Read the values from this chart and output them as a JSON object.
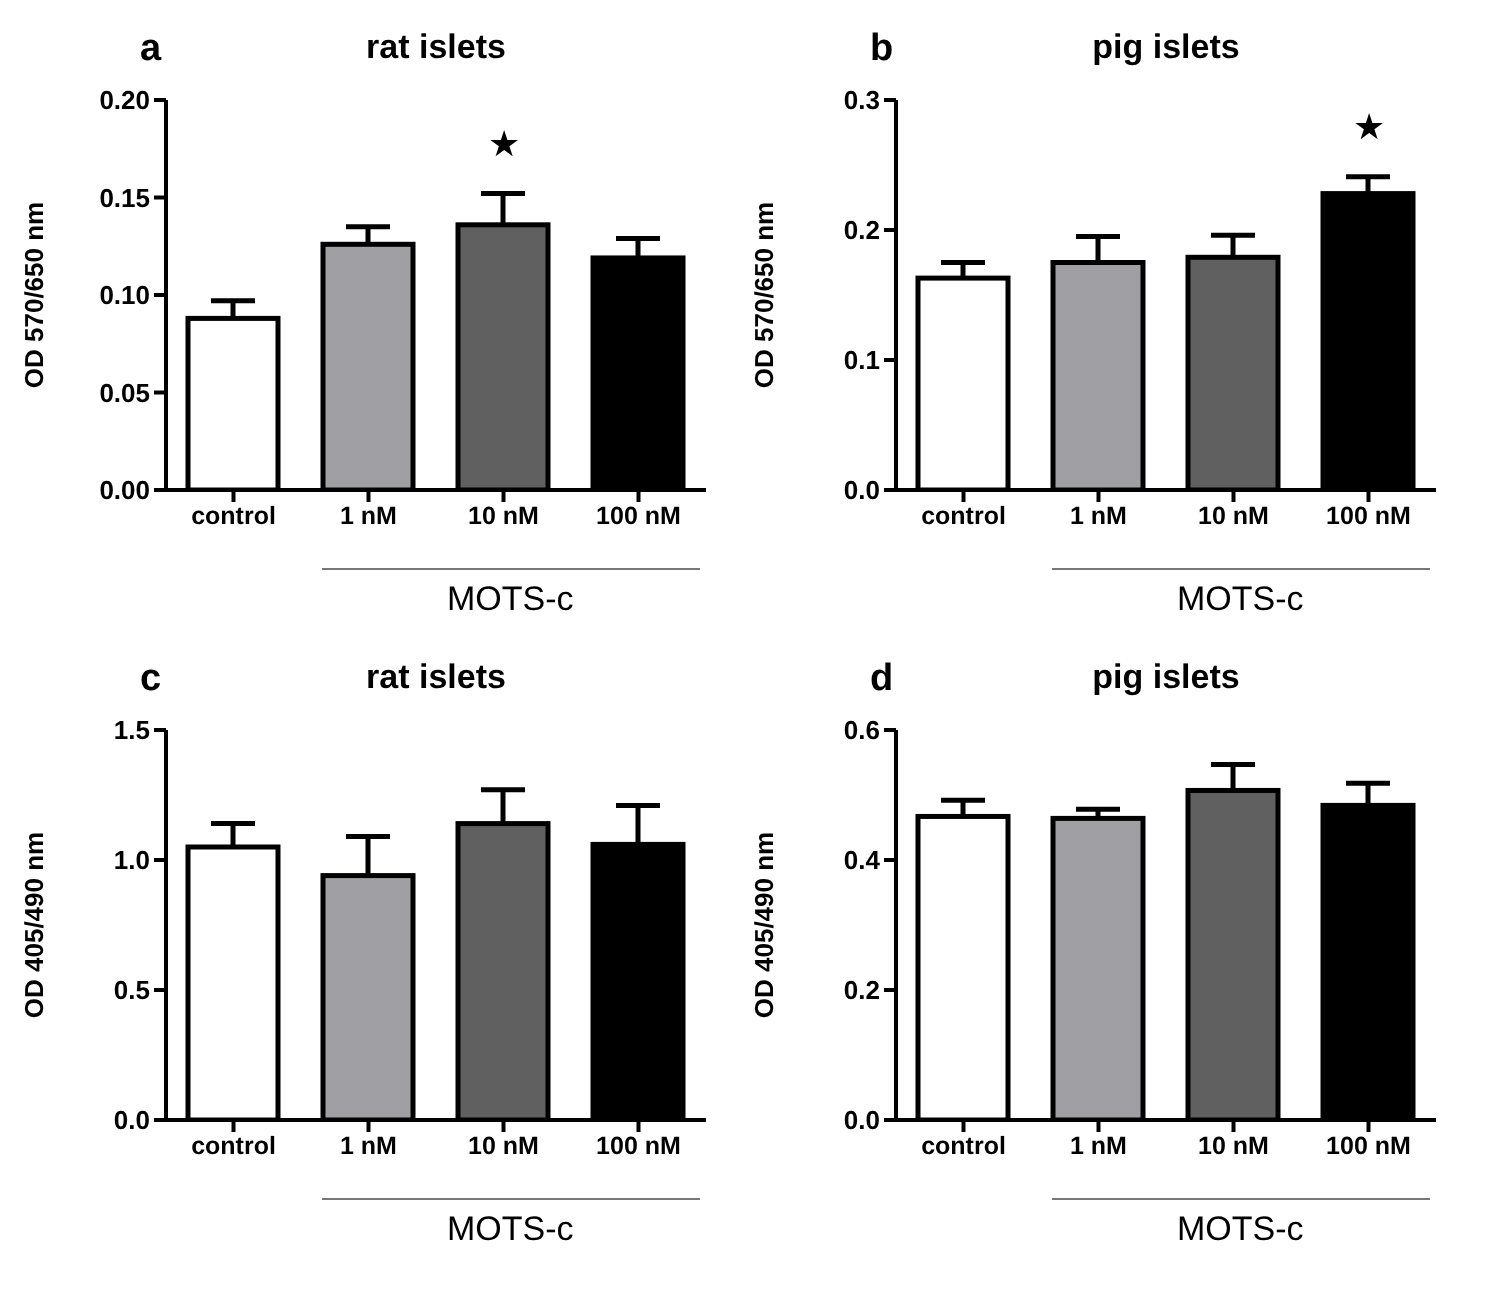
{
  "chart_data": [
    {
      "type": "bar",
      "title": "rat islets",
      "ylabel": "OD 570/650 nm",
      "categories": [
        "control",
        "1 nM",
        "10 nM",
        "100 nM"
      ],
      "values": [
        0.088,
        0.126,
        0.136,
        0.119
      ],
      "colors": [
        "#ffffff",
        "#a0a0a4",
        "#606060",
        "#000000"
      ],
      "errors": [
        [
          0.088,
          0.097
        ],
        [
          0.126,
          0.135
        ],
        [
          0.136,
          0.152
        ],
        [
          0.119,
          0.129
        ]
      ],
      "ylim": [
        0,
        0.2
      ],
      "yticks": [
        {
          "value": 0,
          "label": "0.00"
        },
        {
          "value": 0.05,
          "label": "0.05"
        },
        {
          "value": 0.1,
          "label": "0.10"
        },
        {
          "value": 0.15,
          "label": "0.15"
        },
        {
          "value": 0.2,
          "label": "0.20"
        }
      ],
      "grid": false,
      "legend": false,
      "annotations": [
        "a",
        "MOTS-c",
        "★"
      ]
    },
    {
      "type": "bar",
      "title": "pig islets",
      "ylabel": "OD 570/650 nm",
      "categories": [
        "control",
        "1 nM",
        "10 nM",
        "100 nM"
      ],
      "values": [
        0.163,
        0.175,
        0.179,
        0.228
      ],
      "colors": [
        "#ffffff",
        "#a0a0a4",
        "#606060",
        "#000000"
      ],
      "errors": [
        [
          0.163,
          0.175
        ],
        [
          0.175,
          0.195
        ],
        [
          0.179,
          0.196
        ],
        [
          0.228,
          0.241
        ]
      ],
      "ylim": [
        0,
        0.3
      ],
      "yticks": [
        {
          "value": 0,
          "label": "0.0"
        },
        {
          "value": 0.1,
          "label": "0.1"
        },
        {
          "value": 0.2,
          "label": "0.2"
        },
        {
          "value": 0.3,
          "label": "0.3"
        }
      ],
      "grid": false,
      "legend": false,
      "annotations": [
        "b",
        "MOTS-c",
        "★"
      ]
    },
    {
      "type": "bar",
      "title": "rat islets",
      "ylabel": "OD 405/490 nm",
      "categories": [
        "control",
        "1 nM",
        "10 nM",
        "100 nM"
      ],
      "values": [
        1.05,
        0.94,
        1.14,
        1.06
      ],
      "colors": [
        "#ffffff",
        "#a0a0a4",
        "#606060",
        "#000000"
      ],
      "errors": [
        [
          1.05,
          1.14
        ],
        [
          0.94,
          1.09
        ],
        [
          1.14,
          1.27
        ],
        [
          1.06,
          1.21
        ]
      ],
      "ylim": [
        0,
        1.5
      ],
      "yticks": [
        {
          "value": 0,
          "label": "0.0"
        },
        {
          "value": 0.5,
          "label": "0.5"
        },
        {
          "value": 1,
          "label": "1.0"
        },
        {
          "value": 1.5,
          "label": "1.5"
        }
      ],
      "grid": false,
      "legend": false,
      "annotations": [
        "c",
        "MOTS-c"
      ]
    },
    {
      "type": "bar",
      "title": "pig islets",
      "ylabel": "OD 405/490 nm",
      "categories": [
        "control",
        "1 nM",
        "10 nM",
        "100 nM"
      ],
      "values": [
        0.467,
        0.464,
        0.507,
        0.484
      ],
      "colors": [
        "#ffffff",
        "#a0a0a4",
        "#606060",
        "#000000"
      ],
      "errors": [
        [
          0.467,
          0.492
        ],
        [
          0.464,
          0.478
        ],
        [
          0.507,
          0.547
        ],
        [
          0.484,
          0.518
        ]
      ],
      "ylim": [
        0,
        0.6
      ],
      "yticks": [
        {
          "value": 0,
          "label": "0.0"
        },
        {
          "value": 0.2,
          "label": "0.2"
        },
        {
          "value": 0.4,
          "label": "0.4"
        },
        {
          "value": 0.6,
          "label": "0.6"
        }
      ],
      "grid": false,
      "legend": false,
      "annotations": [
        "d",
        "MOTS-c"
      ]
    }
  ]
}
